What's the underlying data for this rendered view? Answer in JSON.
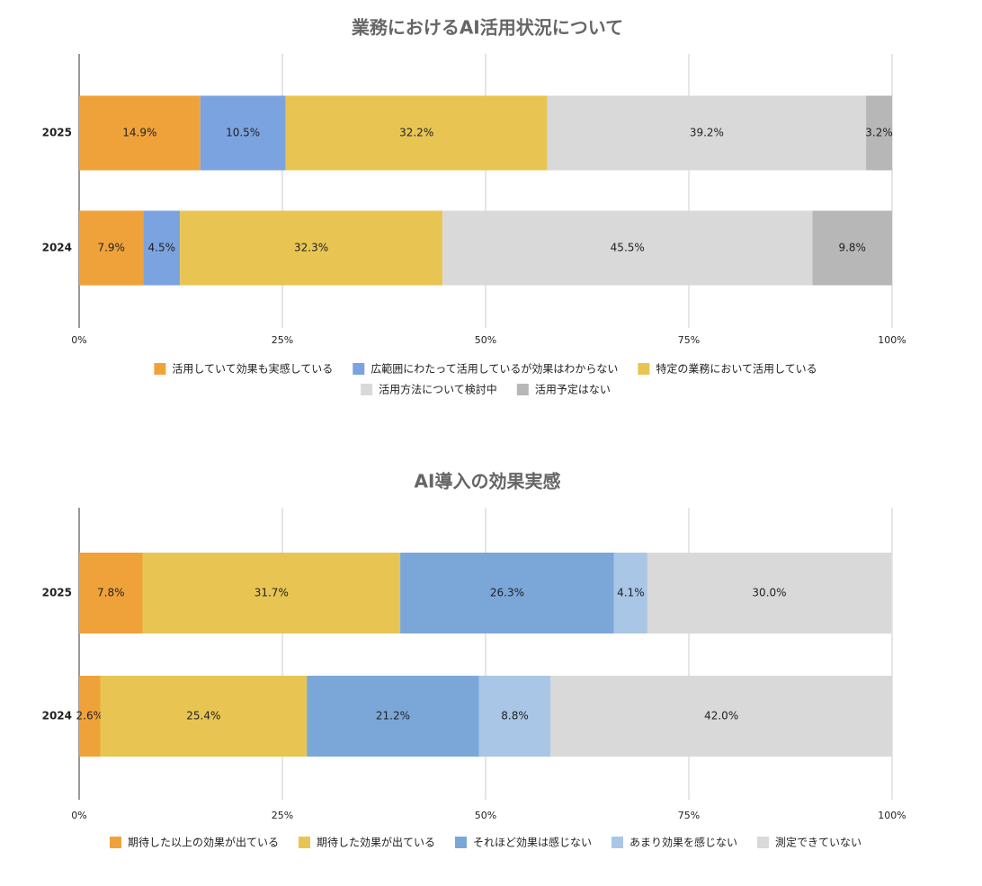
{
  "chart_data": [
    {
      "type": "bar",
      "orientation": "horizontal",
      "stacked": true,
      "grid": true,
      "title": "業務におけるAI活用状況について",
      "categories": [
        "2025",
        "2024"
      ],
      "xlim": [
        0,
        100
      ],
      "xticks": [
        {
          "value": 0,
          "label": "0%"
        },
        {
          "value": 25,
          "label": "25%"
        },
        {
          "value": 50,
          "label": "50%"
        },
        {
          "value": 75,
          "label": "75%"
        },
        {
          "value": 100,
          "label": "100%"
        }
      ],
      "series": [
        {
          "name": "活用していて効果も実感している",
          "color": "#f0a23a",
          "values": [
            14.9,
            7.9
          ],
          "value_labels": [
            "14.9%",
            "7.9%"
          ]
        },
        {
          "name": "広範囲にわたって活用しているが効果はわからない",
          "color": "#7ba3e0",
          "values": [
            10.5,
            4.5
          ],
          "value_labels": [
            "10.5%",
            "4.5%"
          ]
        },
        {
          "name": "特定の業務において活用している",
          "color": "#e8c553",
          "values": [
            32.2,
            32.3
          ],
          "value_labels": [
            "32.2%",
            "32.3%"
          ]
        },
        {
          "name": "活用方法について検討中",
          "color": "#d9d9d9",
          "values": [
            39.2,
            45.5
          ],
          "value_labels": [
            "39.2%",
            "45.5%"
          ]
        },
        {
          "name": "活用予定はない",
          "color": "#b7b7b7",
          "values": [
            3.2,
            9.8
          ],
          "value_labels": [
            "3.2%",
            "9.8%"
          ]
        }
      ]
    },
    {
      "type": "bar",
      "orientation": "horizontal",
      "stacked": true,
      "grid": true,
      "title": "AI導入の効果実感",
      "categories": [
        "2025",
        "2024"
      ],
      "xlim": [
        0,
        100
      ],
      "xticks": [
        {
          "value": 0,
          "label": "0%"
        },
        {
          "value": 25,
          "label": "25%"
        },
        {
          "value": 50,
          "label": "50%"
        },
        {
          "value": 75,
          "label": "75%"
        },
        {
          "value": 100,
          "label": "100%"
        }
      ],
      "series": [
        {
          "name": "期待した以上の効果が出ている",
          "color": "#f0a23a",
          "values": [
            7.8,
            2.6
          ],
          "value_labels": [
            "7.8%",
            "2.6%"
          ]
        },
        {
          "name": "期待した効果が出ている",
          "color": "#e8c553",
          "values": [
            31.7,
            25.4
          ],
          "value_labels": [
            "31.7%",
            "25.4%"
          ]
        },
        {
          "name": "それほど効果は感じない",
          "color": "#7ba7d8",
          "values": [
            26.3,
            21.2
          ],
          "value_labels": [
            "26.3%",
            "21.2%"
          ]
        },
        {
          "name": "あまり効果を感じない",
          "color": "#a9c6e6",
          "values": [
            4.1,
            8.8
          ],
          "value_labels": [
            "4.1%",
            "8.8%"
          ]
        },
        {
          "name": "測定できていない",
          "color": "#d9d9d9",
          "values": [
            30,
            42
          ],
          "value_labels": [
            "30.0%",
            "42.0%"
          ]
        }
      ]
    }
  ]
}
